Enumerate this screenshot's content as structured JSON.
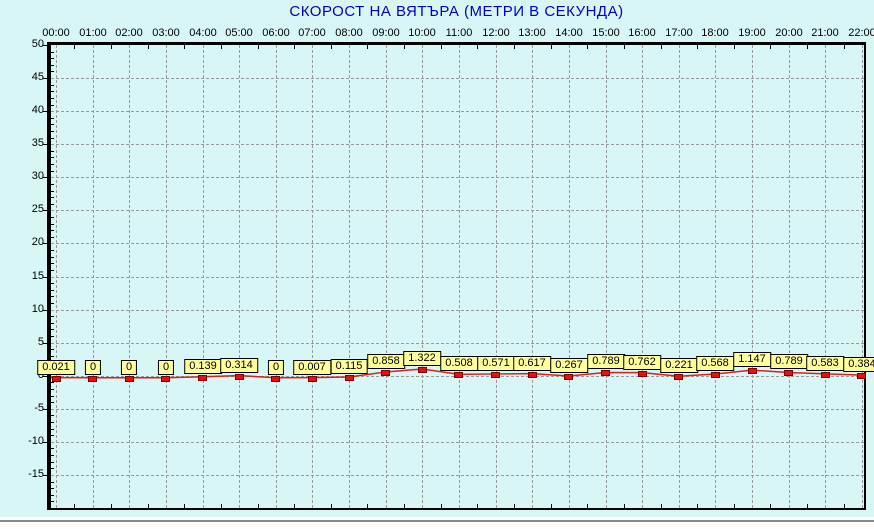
{
  "title": "СКОРОСТ НА ВЯТЪРА (МЕТРИ В СЕКУНДА)",
  "colors": {
    "background": "#D8F6F6",
    "title": "#0000C6",
    "grid": "#999999",
    "axis": "#000000",
    "line": "#DC1E1E",
    "marker_fill": "#E31212",
    "marker_border": "#7E0000",
    "label_box_fill": "#FFFF9B",
    "label_box_border": "#000000",
    "bottom_rule": "#8A8A8A",
    "tick_text": "#000000"
  },
  "chart_data": {
    "type": "line",
    "title": "СКОРОСТ НА ВЯТЪРА (МЕТРИ В СЕКУНДА)",
    "xlabel": "",
    "ylabel": "",
    "x": [
      "00:00",
      "01:00",
      "02:00",
      "03:00",
      "04:00",
      "05:00",
      "06:00",
      "07:00",
      "08:00",
      "09:00",
      "10:00",
      "11:00",
      "12:00",
      "13:00",
      "14:00",
      "15:00",
      "16:00",
      "17:00",
      "18:00",
      "19:00",
      "20:00",
      "21:00",
      "22:00"
    ],
    "values": [
      0.021,
      0,
      0,
      0,
      0.139,
      0.314,
      0,
      0.007,
      0.115,
      0.858,
      1.322,
      0.508,
      0.571,
      0.617,
      0.267,
      0.789,
      0.762,
      0.221,
      0.568,
      1.147,
      0.789,
      0.583,
      0.384
    ],
    "point_labels": [
      "0.021",
      "0",
      "0",
      "0",
      "0.139",
      "0.314",
      "0",
      "0.007",
      "0.115",
      "0.858",
      "1.322",
      "0.508",
      "0.571",
      "0.617",
      "0.267",
      "0.789",
      "0.762",
      "0.221",
      "0.568",
      "1.147",
      "0.789",
      "0.583",
      "0.384"
    ],
    "ylim": [
      -20,
      50
    ],
    "y_tick_step": 5,
    "y_labeled_ticks": [
      50,
      45,
      40,
      35,
      30,
      25,
      20,
      15,
      10,
      5,
      0,
      -5,
      -10,
      -15
    ],
    "grid": "dashed",
    "legend_position": "none",
    "marker": "red-square",
    "label_boxes": true
  }
}
